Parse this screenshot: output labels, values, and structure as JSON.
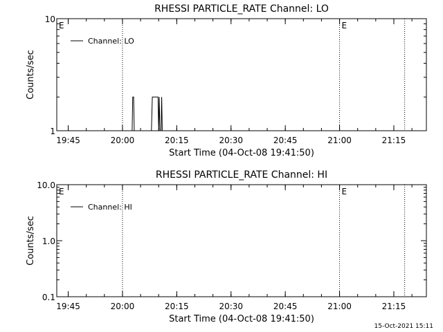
{
  "chart_data": [
    {
      "type": "line",
      "title": "RHESSI PARTICLE_RATE Channel: LO",
      "xlabel": "Start Time (04-Oct-08 19:41:50)",
      "ylabel": "Counts/sec",
      "x_ticks": [
        "19:45",
        "20:00",
        "20:15",
        "20:30",
        "20:45",
        "21:00",
        "21:15"
      ],
      "y_scale": "log",
      "ylim": [
        1,
        10
      ],
      "y_ticks": [
        {
          "value": 1,
          "label": "1"
        },
        {
          "value": 10,
          "label": "10"
        }
      ],
      "legend": {
        "placement": "top-left",
        "entries": [
          "Channel: LO"
        ]
      },
      "vertical_markers": [
        "20:00",
        "21:00",
        "21:18"
      ],
      "event_labels": [
        {
          "time": "19:41:50",
          "text": "E"
        },
        {
          "time": "21:00",
          "text": "E"
        }
      ],
      "series": [
        {
          "name": "Channel: LO",
          "points": [
            [
              "20:02:40",
              1
            ],
            [
              "20:02:50",
              2
            ],
            [
              "20:03:05",
              2
            ],
            [
              "20:03:15",
              1
            ],
            [
              "20:08:00",
              1
            ],
            [
              "20:08:15",
              2
            ],
            [
              "20:09:50",
              2
            ],
            [
              "20:10:00",
              1
            ],
            [
              "20:10:10",
              2
            ],
            [
              "20:10:20",
              1
            ],
            [
              "20:10:40",
              1
            ],
            [
              "20:10:50",
              2
            ],
            [
              "20:11:00",
              1
            ]
          ]
        }
      ]
    },
    {
      "type": "line",
      "title": "RHESSI PARTICLE_RATE Channel: HI",
      "xlabel": "Start Time (04-Oct-08 19:41:50)",
      "ylabel": "Counts/sec",
      "x_ticks": [
        "19:45",
        "20:00",
        "20:15",
        "20:30",
        "20:45",
        "21:00",
        "21:15"
      ],
      "y_scale": "log",
      "ylim": [
        0.1,
        10
      ],
      "y_ticks": [
        {
          "value": 0.1,
          "label": "0.1"
        },
        {
          "value": 1,
          "label": "1.0"
        },
        {
          "value": 10,
          "label": "10.0"
        }
      ],
      "legend": {
        "placement": "top-left",
        "entries": [
          "Channel: HI"
        ]
      },
      "vertical_markers": [
        "20:00",
        "21:00",
        "21:18"
      ],
      "event_labels": [
        {
          "time": "19:41:50",
          "text": "E"
        },
        {
          "time": "21:00",
          "text": "E"
        }
      ],
      "series": [
        {
          "name": "Channel: HI",
          "points": []
        }
      ]
    }
  ],
  "footer": {
    "timestamp": "15-Oct-2021 15:11"
  }
}
